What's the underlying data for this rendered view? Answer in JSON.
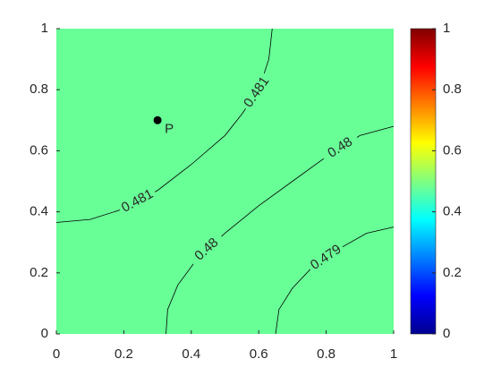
{
  "chart_data": {
    "type": "contour",
    "xlim": [
      0,
      1
    ],
    "xticks": [
      0,
      0.2,
      0.4,
      0.6,
      0.8,
      1
    ],
    "ylim": [
      0,
      1
    ],
    "yticks": [
      0,
      0.2,
      0.4,
      0.6,
      0.8,
      1
    ],
    "fill_color": "#68ff97",
    "contours": [
      {
        "level": 0.481,
        "x": [
          0,
          0.1,
          0.2,
          0.3,
          0.4,
          0.5,
          0.55,
          0.6,
          0.63,
          0.64
        ],
        "y": [
          0.365,
          0.375,
          0.41,
          0.47,
          0.555,
          0.65,
          0.72,
          0.8,
          0.9,
          1
        ]
      },
      {
        "level": 0.48,
        "x": [
          0.325,
          0.33,
          0.36,
          0.42,
          0.5,
          0.6,
          0.7,
          0.8,
          0.9,
          1
        ],
        "y": [
          0,
          0.08,
          0.16,
          0.25,
          0.33,
          0.42,
          0.5,
          0.58,
          0.65,
          0.68
        ]
      },
      {
        "level": 0.479,
        "x": [
          0.65,
          0.66,
          0.7,
          0.76,
          0.84,
          0.92,
          1
        ],
        "y": [
          0,
          0.08,
          0.15,
          0.22,
          0.28,
          0.33,
          0.35
        ]
      }
    ],
    "points": [
      {
        "name": "P",
        "x": 0.3,
        "y": 0.7
      }
    ],
    "colorbar": {
      "lim": [
        0,
        1
      ],
      "ticks": [
        0,
        0.2,
        0.4,
        0.6,
        0.8,
        1
      ],
      "colormap": [
        "#00008f",
        "#0000ff",
        "#0080ff",
        "#00ffff",
        "#80ff80",
        "#ffff00",
        "#ff8000",
        "#ff0000",
        "#800000"
      ]
    }
  }
}
